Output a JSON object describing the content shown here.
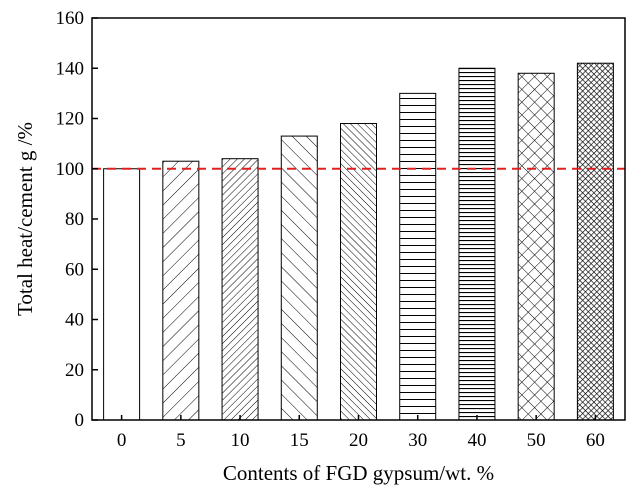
{
  "chart_data": {
    "type": "bar",
    "categories": [
      "0",
      "5",
      "10",
      "15",
      "20",
      "30",
      "40",
      "50",
      "60"
    ],
    "values": [
      100,
      103,
      104,
      113,
      118,
      130,
      140,
      138,
      142
    ],
    "xlabel": "Contents of FGD gypsum/wt. %",
    "ylabel": "Total heat/cement g /%",
    "ylim": [
      0,
      160
    ],
    "yticks": [
      "0",
      "20",
      "40",
      "60",
      "80",
      "100",
      "120",
      "140",
      "160"
    ],
    "reference_line": {
      "value": 100,
      "color": "#e02020",
      "style": "dashed"
    },
    "bar_patterns": [
      "blank",
      "diag-right-sparse",
      "diag-right-dense",
      "diag-left-sparse",
      "diag-left-dense",
      "horizontal-sparse",
      "horizontal-dense",
      "crosshatch",
      "crosshatch-dense"
    ],
    "grid": false,
    "legend": "none"
  }
}
